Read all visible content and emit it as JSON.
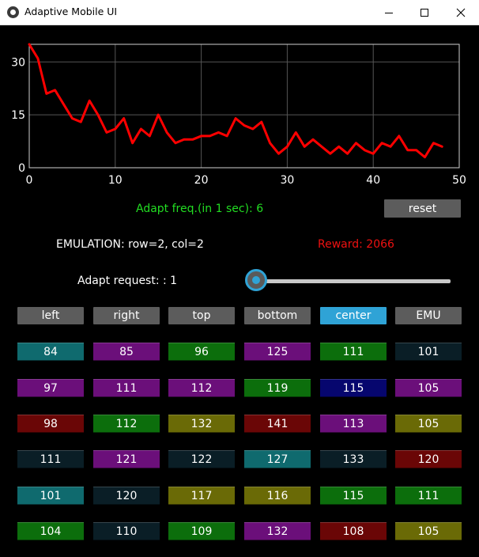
{
  "window": {
    "title": "Adaptive Mobile UI",
    "minimize_icon": "minimize-icon",
    "maximize_icon": "maximize-icon",
    "close_icon": "close-icon"
  },
  "chart_data": {
    "type": "line",
    "title": "",
    "xlabel": "",
    "ylabel": "",
    "xlim": [
      0,
      50
    ],
    "ylim": [
      0,
      35
    ],
    "x_ticks": [
      "0",
      "10",
      "20",
      "30",
      "40",
      "50"
    ],
    "y_ticks": [
      "0",
      "15",
      "30"
    ],
    "grid": true,
    "series": [
      {
        "color": "#ff0000",
        "x": [
          0,
          1,
          2,
          3,
          4,
          5,
          6,
          7,
          8,
          9,
          10,
          11,
          12,
          13,
          14,
          15,
          16,
          17,
          18,
          19,
          20,
          21,
          22,
          23,
          24,
          25,
          26,
          27,
          28,
          29,
          30,
          31,
          32,
          33,
          34,
          35,
          36,
          37,
          38,
          39,
          40,
          41,
          42,
          43,
          44,
          45,
          46,
          47,
          48
        ],
        "values": [
          35,
          31,
          21,
          22,
          18,
          14,
          13,
          19,
          15,
          10,
          11,
          14,
          7,
          11,
          9,
          15,
          10,
          7,
          8,
          8,
          9,
          9,
          10,
          9,
          14,
          12,
          11,
          13,
          7,
          4,
          6,
          10,
          6,
          8,
          6,
          4,
          6,
          4,
          7,
          5,
          4,
          7,
          6,
          9,
          5,
          5,
          3,
          7,
          6
        ]
      }
    ]
  },
  "adapt_freq": {
    "text": "Adapt freq.(in 1 sec): 6",
    "color": "#22dd22"
  },
  "reset_label": "reset",
  "emulation_text": "EMULATION: row=2, col=2",
  "reward": {
    "text": "Reward: 2066",
    "color": "#ee1111"
  },
  "adapt_request_text": "Adapt request: : 1",
  "slider": {
    "value": 0,
    "accent": "#2fa3d6"
  },
  "buttons": [
    {
      "label": "left",
      "active": false
    },
    {
      "label": "right",
      "active": false
    },
    {
      "label": "top",
      "active": false
    },
    {
      "label": "bottom",
      "active": false
    },
    {
      "label": "center",
      "active": true
    },
    {
      "label": "EMU",
      "active": false
    }
  ],
  "cell_colors": {
    "teal": "#0f6a6e",
    "purple": "#6b0f7a",
    "green": "#0c6e0c",
    "navy": "#06066e",
    "maroon": "#6a0606",
    "olive": "#6a6a06",
    "dark": "#0a1e26"
  },
  "grid": [
    [
      {
        "value": "84",
        "color": "teal"
      },
      {
        "value": "85",
        "color": "purple"
      },
      {
        "value": "96",
        "color": "green"
      },
      {
        "value": "125",
        "color": "purple"
      },
      {
        "value": "111",
        "color": "green"
      },
      {
        "value": "101",
        "color": "dark"
      }
    ],
    [
      {
        "value": "97",
        "color": "purple"
      },
      {
        "value": "111",
        "color": "purple"
      },
      {
        "value": "112",
        "color": "purple"
      },
      {
        "value": "119",
        "color": "green"
      },
      {
        "value": "115",
        "color": "navy"
      },
      {
        "value": "105",
        "color": "purple"
      }
    ],
    [
      {
        "value": "98",
        "color": "maroon"
      },
      {
        "value": "112",
        "color": "green"
      },
      {
        "value": "132",
        "color": "olive"
      },
      {
        "value": "141",
        "color": "maroon"
      },
      {
        "value": "113",
        "color": "purple"
      },
      {
        "value": "105",
        "color": "olive"
      }
    ],
    [
      {
        "value": "111",
        "color": "dark"
      },
      {
        "value": "121",
        "color": "purple"
      },
      {
        "value": "122",
        "color": "dark"
      },
      {
        "value": "127",
        "color": "teal"
      },
      {
        "value": "133",
        "color": "dark"
      },
      {
        "value": "120",
        "color": "maroon"
      }
    ],
    [
      {
        "value": "101",
        "color": "teal"
      },
      {
        "value": "120",
        "color": "dark"
      },
      {
        "value": "117",
        "color": "olive"
      },
      {
        "value": "116",
        "color": "olive"
      },
      {
        "value": "115",
        "color": "green"
      },
      {
        "value": "111",
        "color": "green"
      }
    ],
    [
      {
        "value": "104",
        "color": "green"
      },
      {
        "value": "110",
        "color": "dark"
      },
      {
        "value": "109",
        "color": "green"
      },
      {
        "value": "132",
        "color": "purple"
      },
      {
        "value": "108",
        "color": "maroon"
      },
      {
        "value": "105",
        "color": "olive"
      }
    ]
  ]
}
